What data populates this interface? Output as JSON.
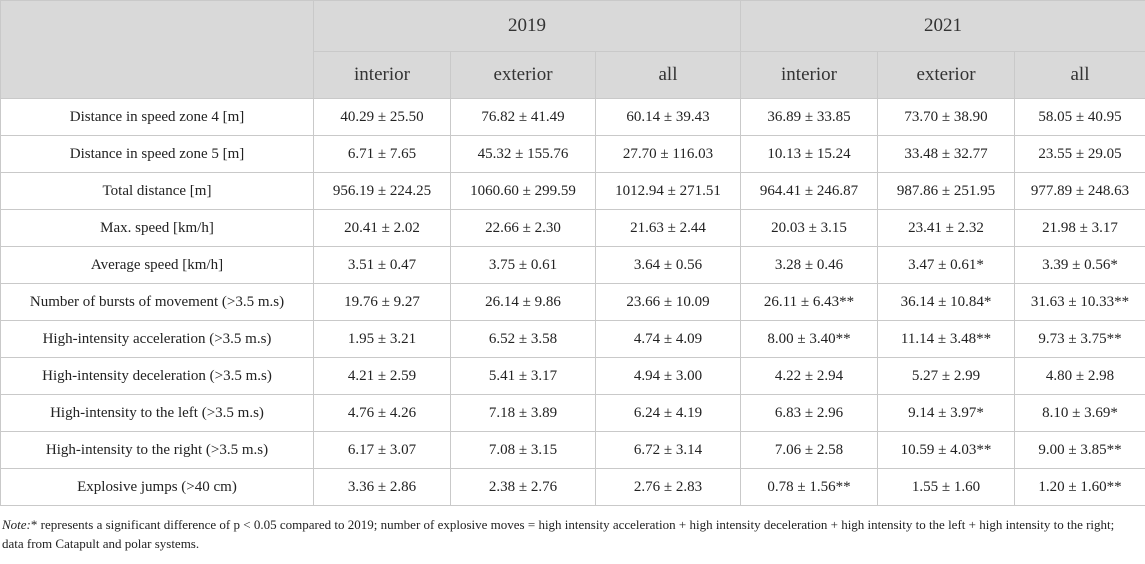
{
  "table": {
    "years": [
      "2019",
      "2021"
    ],
    "subheaders": [
      "interior",
      "exterior",
      "all",
      "interior",
      "exterior",
      "all"
    ],
    "rows": [
      {
        "label": "Distance in speed zone 4 [m]",
        "values": [
          "40.29 ± 25.50",
          "76.82 ± 41.49",
          "60.14 ± 39.43",
          "36.89 ± 33.85",
          "73.70 ± 38.90",
          "58.05 ± 40.95"
        ]
      },
      {
        "label": "Distance in speed zone 5 [m]",
        "values": [
          "6.71 ± 7.65",
          "45.32 ± 155.76",
          "27.70 ± 116.03",
          "10.13 ± 15.24",
          "33.48 ± 32.77",
          "23.55 ± 29.05"
        ]
      },
      {
        "label": "Total distance [m]",
        "values": [
          "956.19 ± 224.25",
          "1060.60 ± 299.59",
          "1012.94 ± 271.51",
          "964.41 ± 246.87",
          "987.86 ± 251.95",
          "977.89 ± 248.63"
        ]
      },
      {
        "label": "Max. speed [km/h]",
        "values": [
          "20.41 ± 2.02",
          "22.66 ± 2.30",
          "21.63 ± 2.44",
          "20.03 ± 3.15",
          "23.41 ± 2.32",
          "21.98 ± 3.17"
        ]
      },
      {
        "label": "Average speed [km/h]",
        "values": [
          "3.51 ± 0.47",
          "3.75 ± 0.61",
          "3.64 ± 0.56",
          "3.28 ± 0.46",
          "3.47 ± 0.61*",
          "3.39 ± 0.56*"
        ]
      },
      {
        "label": "Number of bursts of movement (>3.5 m.s)",
        "values": [
          "19.76 ± 9.27",
          "26.14 ± 9.86",
          "23.66 ± 10.09",
          "26.11 ± 6.43**",
          "36.14 ± 10.84*",
          "31.63 ± 10.33**"
        ]
      },
      {
        "label": "High-intensity acceleration (>3.5 m.s)",
        "values": [
          "1.95 ± 3.21",
          "6.52 ± 3.58",
          "4.74 ± 4.09",
          "8.00 ± 3.40**",
          "11.14 ± 3.48**",
          "9.73 ± 3.75**"
        ]
      },
      {
        "label": "High-intensity deceleration (>3.5 m.s)",
        "values": [
          "4.21 ± 2.59",
          "5.41 ± 3.17",
          "4.94 ± 3.00",
          "4.22 ± 2.94",
          "5.27 ± 2.99",
          "4.80 ± 2.98"
        ]
      },
      {
        "label": "High-intensity to the left (>3.5 m.s)",
        "values": [
          "4.76 ± 4.26",
          "7.18 ± 3.89",
          "6.24 ± 4.19",
          "6.83 ± 2.96",
          "9.14 ± 3.97*",
          "8.10 ± 3.69*"
        ]
      },
      {
        "label": "High-intensity to the right (>3.5 m.s)",
        "values": [
          "6.17 ± 3.07",
          "7.08 ± 3.15",
          "6.72 ± 3.14",
          "7.06 ± 2.58",
          "10.59 ± 4.03**",
          "9.00 ± 3.85**"
        ]
      },
      {
        "label": "Explosive jumps (>40 cm)",
        "values": [
          "3.36 ± 2.86",
          "2.38 ± 2.76",
          "2.76 ± 2.83",
          "0.78 ± 1.56**",
          "1.55 ± 1.60",
          "1.20 ± 1.60**"
        ]
      }
    ]
  },
  "note": {
    "label": "Note:",
    "text": "* represents a significant difference of p < 0.05 compared to 2019; number of explosive moves = high intensity acceleration + high intensity deceleration + high intensity to the left + high intensity to the right; data from Catapult and polar systems."
  }
}
